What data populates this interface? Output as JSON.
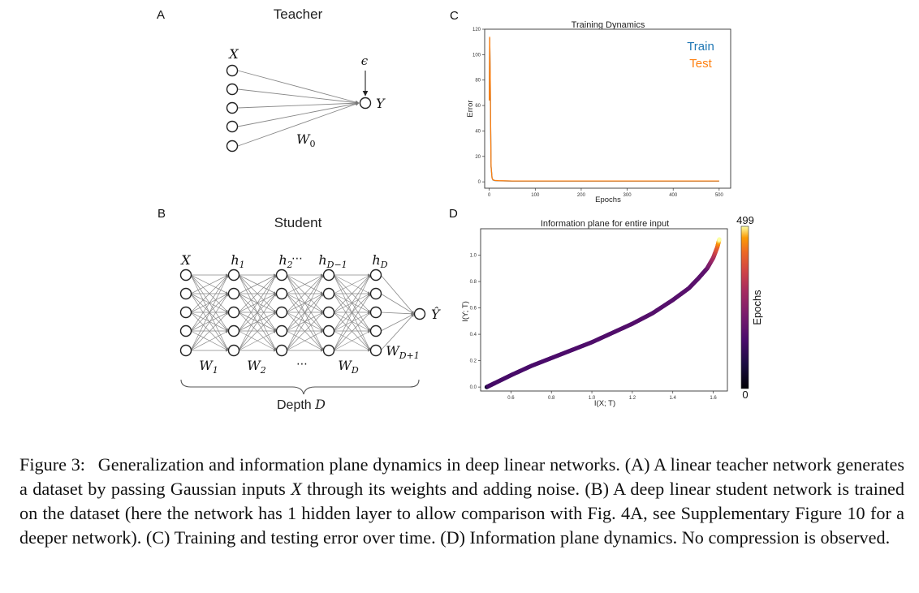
{
  "panel_a": {
    "letter": "A",
    "title": "Teacher",
    "input_label": "X",
    "output_label": "Y",
    "noise_label": "ϵ",
    "weight_label": "W",
    "weight_sub": "0"
  },
  "panel_b": {
    "letter": "B",
    "title": "Student",
    "layers": [
      {
        "name": "X",
        "sub": ""
      },
      {
        "name": "h",
        "sub": "1"
      },
      {
        "name": "h",
        "sub": "2"
      },
      {
        "name": "h",
        "sub": "D−1"
      },
      {
        "name": "h",
        "sub": "D"
      }
    ],
    "ellipsis": "⋯",
    "output_label": "Ŷ",
    "weights": [
      {
        "name": "W",
        "sub": "1"
      },
      {
        "name": "W",
        "sub": "2"
      },
      {
        "name": "⋯",
        "sub": ""
      },
      {
        "name": "W",
        "sub": "D"
      },
      {
        "name": "W",
        "sub": "D+1"
      }
    ],
    "depth_label": "Depth",
    "depth_var": "D"
  },
  "colors": {
    "train": "#1f77b4",
    "test": "#ff7f0e",
    "frame": "#333333",
    "node_stroke": "#222222",
    "edge": "#888888"
  },
  "chart_data": [
    {
      "panel": "C",
      "type": "line",
      "title": "Training Dynamics",
      "xlabel": "Epochs",
      "ylabel": "Error",
      "xlim": [
        -10,
        525
      ],
      "ylim": [
        -5,
        120
      ],
      "xticks": [
        0,
        100,
        200,
        300,
        400,
        500
      ],
      "yticks": [
        0,
        20,
        40,
        60,
        80,
        100,
        120
      ],
      "legend": "top-right",
      "series": [
        {
          "name": "Train",
          "color": "#1f77b4",
          "x": [
            0,
            1,
            2,
            3,
            4,
            6,
            8,
            12,
            20,
            50,
            100,
            200,
            300,
            400,
            500
          ],
          "y": [
            64,
            113,
            85,
            40,
            12,
            3,
            1.5,
            1,
            0.8,
            0.6,
            0.6,
            0.6,
            0.6,
            0.6,
            0.6
          ]
        },
        {
          "name": "Test",
          "color": "#ff7f0e",
          "x": [
            0,
            1,
            2,
            3,
            4,
            6,
            8,
            12,
            20,
            50,
            100,
            200,
            300,
            400,
            500
          ],
          "y": [
            64,
            114,
            86,
            41,
            12,
            3,
            1.6,
            1.1,
            0.9,
            0.7,
            0.7,
            0.7,
            0.7,
            0.7,
            0.7
          ]
        }
      ]
    },
    {
      "panel": "D",
      "type": "scatter",
      "title": "Information plane for entire input",
      "xlabel": "I(X; T)",
      "ylabel": "I(Y; T)",
      "xlim": [
        0.45,
        1.67
      ],
      "ylim": [
        -0.03,
        1.2
      ],
      "xticks": [
        0.6,
        0.8,
        1.0,
        1.2,
        1.4,
        1.6
      ],
      "yticks": [
        0.0,
        0.2,
        0.4,
        0.6,
        0.8,
        1.0
      ],
      "colorbar": {
        "label": "Epochs",
        "min": 0,
        "max": 499,
        "min_label": "0",
        "max_label": "499"
      },
      "series": [
        {
          "name": "Epochs",
          "color_by": "epoch",
          "x": [
            0.48,
            0.52,
            0.6,
            0.7,
            0.8,
            0.9,
            1.0,
            1.1,
            1.2,
            1.3,
            1.4,
            1.48,
            1.53,
            1.57,
            1.6,
            1.62,
            1.63
          ],
          "y": [
            0.0,
            0.03,
            0.09,
            0.16,
            0.22,
            0.28,
            0.34,
            0.41,
            0.48,
            0.56,
            0.66,
            0.75,
            0.83,
            0.9,
            0.98,
            1.06,
            1.12
          ]
        }
      ]
    }
  ],
  "caption": {
    "label": "Figure 3:",
    "text_before_math": "Generalization and information plane dynamics in deep linear networks. (A) A linear teacher network generates a dataset by passing Gaussian inputs ",
    "math": "X",
    "text_after_math": " through its weights and adding noise. (B) A deep linear student network is trained on the dataset (here the network has 1 hidden layer to allow comparison with Fig. 4A, see Supplementary Figure 10 for a deeper network). (C) Training and testing error over time. (D) Information plane dynamics. No compression is observed."
  }
}
